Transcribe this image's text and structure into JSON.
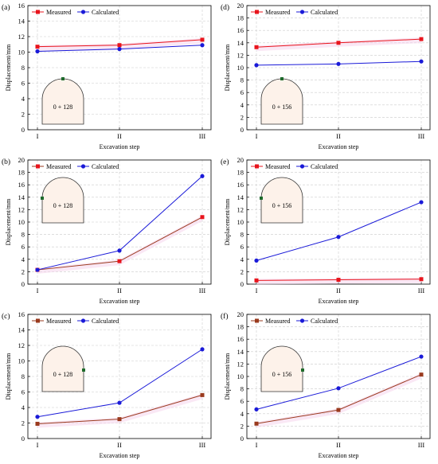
{
  "colors": {
    "measured": "#e8141c",
    "measured_dark": "#9a3a1e",
    "calculated": "#1a1ad8",
    "section_fill": "#fdf2ea",
    "monitor_point": "#1e6b2c",
    "band": "#f6d6ec",
    "grid": "#cccccc"
  },
  "chart_data": [
    {
      "id": "a",
      "type": "line",
      "panel_label": "(a)",
      "categories": [
        "I",
        "II",
        "III"
      ],
      "xlabel": "Excavation step",
      "ylabel": "Displacement/mm",
      "ylim": [
        0,
        16
      ],
      "yticks": [
        0,
        2,
        4,
        6,
        8,
        10,
        12,
        14,
        16
      ],
      "grid": true,
      "legend": "top-left",
      "section_label": "0 + 128",
      "monitor_point": "crown",
      "measured_marker": "red",
      "series": [
        {
          "name": "Measured",
          "values": [
            10.7,
            10.9,
            11.6
          ]
        },
        {
          "name": "Calculated",
          "values": [
            10.1,
            10.4,
            10.9
          ]
        }
      ]
    },
    {
      "id": "d",
      "type": "line",
      "panel_label": "(d)",
      "categories": [
        "I",
        "II",
        "III"
      ],
      "xlabel": "Excavation step",
      "ylabel": "Displacement/mm",
      "ylim": [
        0,
        20
      ],
      "yticks": [
        0,
        2,
        4,
        6,
        8,
        10,
        12,
        14,
        16,
        18,
        20
      ],
      "grid": true,
      "legend": "top-left",
      "section_label": "0 + 156",
      "monitor_point": "crown",
      "measured_marker": "red",
      "series": [
        {
          "name": "Measured",
          "values": [
            13.3,
            14.0,
            14.6
          ]
        },
        {
          "name": "Calculated",
          "values": [
            10.4,
            10.6,
            11.0
          ]
        }
      ]
    },
    {
      "id": "b",
      "type": "line",
      "panel_label": "(b)",
      "categories": [
        "I",
        "II",
        "III"
      ],
      "xlabel": "Excavation step",
      "ylabel": "Displacement/mm",
      "ylim": [
        0,
        20
      ],
      "yticks": [
        0,
        2,
        4,
        6,
        8,
        10,
        12,
        14,
        16,
        18,
        20
      ],
      "grid": true,
      "legend": "top-left",
      "section_label": "0 + 128",
      "monitor_point": "left-wall",
      "measured_marker": "red",
      "series": [
        {
          "name": "Measured",
          "values": [
            2.3,
            3.7,
            10.8
          ]
        },
        {
          "name": "Calculated",
          "values": [
            2.3,
            5.4,
            17.4
          ]
        }
      ]
    },
    {
      "id": "e",
      "type": "line",
      "panel_label": "(e)",
      "categories": [
        "I",
        "II",
        "III"
      ],
      "xlabel": "Excavation step",
      "ylabel": "Displacement/mm",
      "ylim": [
        0,
        20
      ],
      "yticks": [
        0,
        2,
        4,
        6,
        8,
        10,
        12,
        14,
        16,
        18,
        20
      ],
      "grid": true,
      "legend": "top-left",
      "section_label": "0 + 156",
      "monitor_point": "left-wall",
      "measured_marker": "red",
      "series": [
        {
          "name": "Measured",
          "values": [
            0.6,
            0.7,
            0.8
          ]
        },
        {
          "name": "Calculated",
          "values": [
            3.8,
            7.6,
            13.2
          ]
        }
      ]
    },
    {
      "id": "c",
      "type": "line",
      "panel_label": "(c)",
      "categories": [
        "I",
        "II",
        "III"
      ],
      "xlabel": "Excavation step",
      "ylabel": "Displacement/mm",
      "ylim": [
        0,
        16
      ],
      "yticks": [
        0,
        2,
        4,
        6,
        8,
        10,
        12,
        14,
        16
      ],
      "grid": true,
      "legend": "top-left",
      "section_label": "0 + 128",
      "monitor_point": "right-wall",
      "measured_marker": "brown",
      "series": [
        {
          "name": "Measured",
          "values": [
            1.9,
            2.5,
            5.6
          ]
        },
        {
          "name": "Calculated",
          "values": [
            2.8,
            4.6,
            11.5
          ]
        }
      ]
    },
    {
      "id": "f",
      "type": "line",
      "panel_label": "(f)",
      "categories": [
        "I",
        "II",
        "III"
      ],
      "xlabel": "Excavation step",
      "ylabel": "Displacement/mm",
      "ylim": [
        0,
        20
      ],
      "yticks": [
        0,
        2,
        4,
        6,
        8,
        10,
        12,
        14,
        16,
        18,
        20
      ],
      "grid": true,
      "legend": "top-left",
      "section_label": "0 + 156",
      "monitor_point": "right-wall",
      "measured_marker": "brown",
      "series": [
        {
          "name": "Measured",
          "values": [
            2.4,
            4.6,
            10.3
          ]
        },
        {
          "name": "Calculated",
          "values": [
            4.7,
            8.1,
            13.2
          ]
        }
      ]
    }
  ]
}
